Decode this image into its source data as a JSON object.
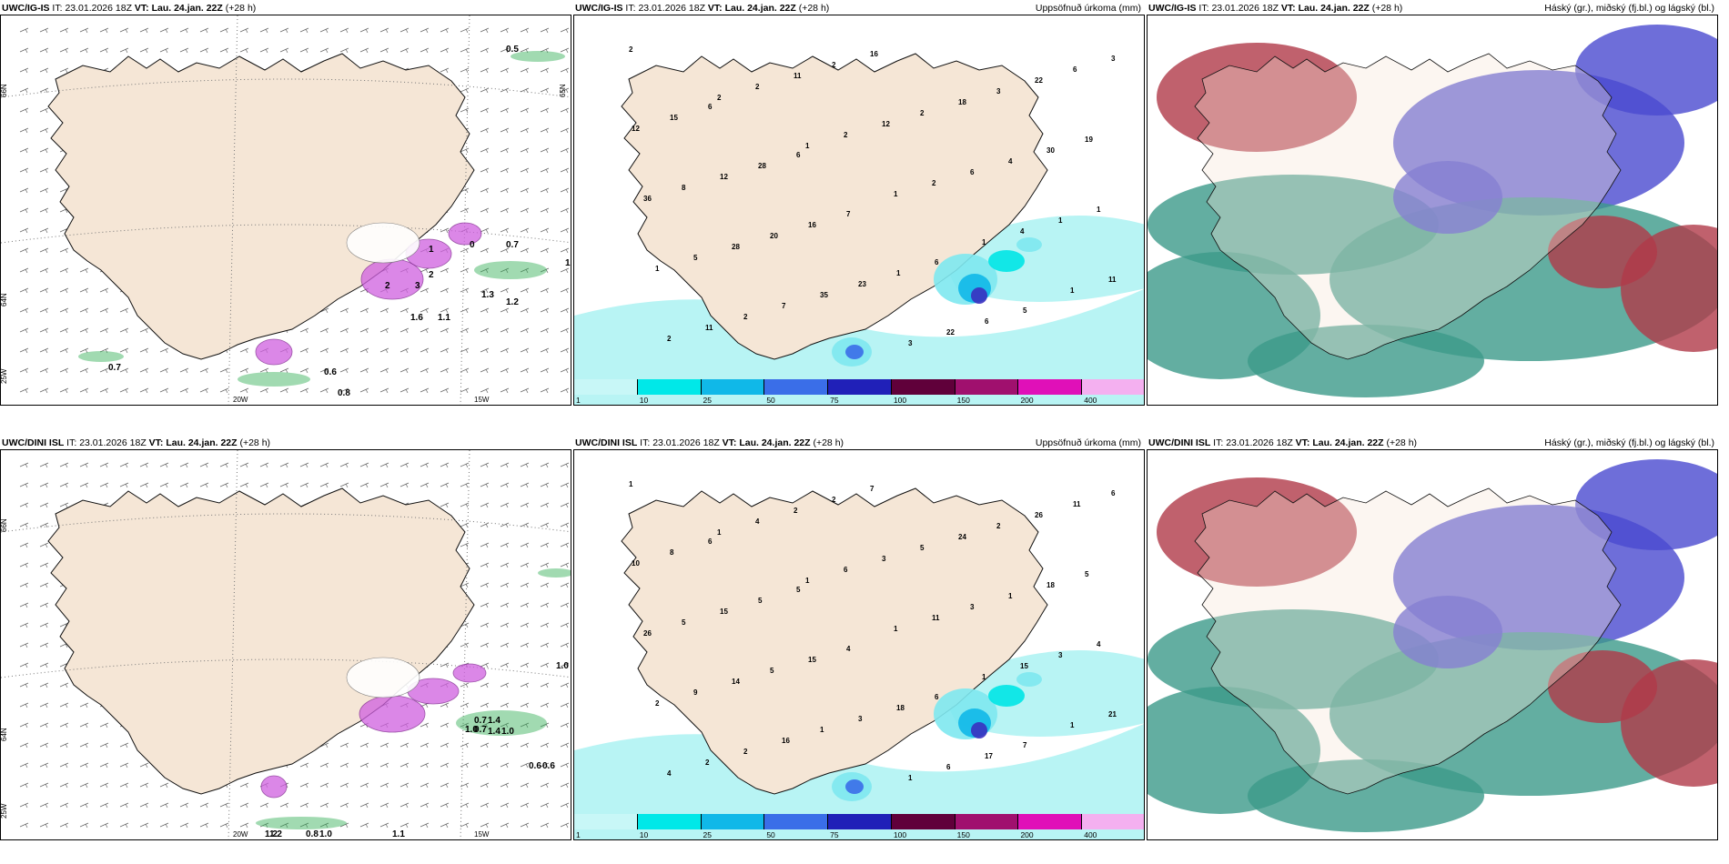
{
  "colors": {
    "land": "#f5e6d6",
    "ocean": "#ffffff",
    "coast": "#111111",
    "precip_light": "#b8f4f4",
    "precip_cyan": "#00e6e6",
    "cloud_high": "#3c9a8a",
    "cloud_mid": "#b03a48",
    "cloud_low": "#4a4ad0",
    "snow_purple": "#d060e0",
    "green_contour": "#2fae52"
  },
  "top_row": {
    "wind_panel": {
      "model": "UWC/IG-IS",
      "it_label": "IT:",
      "it_value": "23.01.2026 18Z",
      "vt_label": "VT:",
      "vt_value": "Lau. 24.jan. 22Z",
      "lead": "(+28 h)",
      "values": [
        "0.5",
        "0.7",
        "1.0",
        "1.3",
        "1.2",
        "1.1",
        "1.6",
        "0.6",
        "0.8",
        "0.7",
        "2",
        "2",
        "3",
        "1",
        "0"
      ],
      "lon_labels": [
        "20W",
        "15W"
      ],
      "lat_labels": [
        "66N",
        "64N",
        "25W",
        "65N"
      ]
    },
    "precip_panel": {
      "model": "UWC/IG-IS",
      "it_label": "IT:",
      "it_value": "23.01.2026 18Z",
      "vt_label": "VT:",
      "vt_value": "Lau. 24.jan. 22Z",
      "lead": "(+28 h)",
      "title": "Uppsöfnuð úrkoma (mm)",
      "values": [
        "2",
        "2",
        "1",
        "1",
        "1",
        "1",
        "2",
        "2",
        "2",
        "2",
        "4",
        "11",
        "11",
        "11",
        "12",
        "6",
        "1",
        "1",
        "2",
        "2",
        "2",
        "4",
        "1",
        "5",
        "7",
        "16",
        "18",
        "30",
        "36",
        "28",
        "35",
        "3",
        "3",
        "19",
        "8",
        "20",
        "23",
        "22",
        "22",
        "12",
        "12",
        "16",
        "1",
        "6",
        "6",
        "15",
        "28",
        "7",
        "6",
        "5",
        "3",
        "6",
        "6"
      ]
    },
    "cloud_panel": {
      "model": "UWC/IG-IS",
      "it_label": "IT:",
      "it_value": "23.01.2026 18Z",
      "vt_label": "VT:",
      "vt_value": "Lau. 24.jan. 22Z",
      "lead": "(+28 h)",
      "title": "Háský (gr.), miðský (fj.bl.) og lágský (bl.)"
    }
  },
  "bottom_row": {
    "wind_panel": {
      "model": "UWC/DINI ISL",
      "it_label": "IT:",
      "it_value": "23.01.2026 18Z",
      "vt_label": "VT:",
      "vt_value": "Lau. 24.jan. 22Z",
      "lead": "(+28 h)",
      "values": [
        "1.0",
        "1.2",
        "0.7",
        "1.1",
        "1.0",
        "1.4",
        "0.6",
        "0.6",
        "1.2",
        "0.8",
        "0.7",
        "1.0",
        "1.4",
        "1.0"
      ],
      "lon_labels": [
        "20W",
        "15W"
      ],
      "lat_labels": [
        "66N",
        "64N",
        "25W"
      ]
    },
    "precip_panel": {
      "model": "UWC/DINI ISL",
      "it_label": "IT:",
      "it_value": "23.01.2026 18Z",
      "vt_label": "VT:",
      "vt_value": "Lau. 24.jan. 22Z",
      "lead": "(+28 h)",
      "title": "Uppsöfnuð úrkoma (mm)",
      "values": [
        "1",
        "1",
        "1",
        "1",
        "1",
        "1",
        "4",
        "4",
        "6",
        "11",
        "15",
        "21",
        "2",
        "2",
        "3",
        "3",
        "3",
        "2",
        "2",
        "2",
        "5",
        "1",
        "4",
        "9",
        "16",
        "7",
        "24",
        "18",
        "26",
        "14",
        "1",
        "1",
        "2",
        "5",
        "5",
        "5",
        "3",
        "6",
        "26",
        "10",
        "15",
        "15",
        "18",
        "17",
        "11",
        "8",
        "5",
        "4",
        "6",
        "7",
        "6",
        "6",
        "5"
      ]
    },
    "cloud_panel": {
      "model": "UWC/DINI ISL",
      "it_label": "IT:",
      "it_value": "23.01.2026 18Z",
      "vt_label": "VT:",
      "vt_value": "Lau. 24.jan. 22Z",
      "lead": "(+28 h)",
      "title": "Háský (gr.), miðský (fj.bl.) og lágský (bl.)"
    }
  },
  "precip_legend": {
    "labels": [
      "1",
      "10",
      "25",
      "50",
      "75",
      "100",
      "150",
      "200",
      "400"
    ],
    "colors": [
      "#c8f7f7",
      "#00e8e8",
      "#10b8e8",
      "#3a6ee8",
      "#2020b8",
      "#60003a",
      "#a0106e",
      "#e010b8",
      "#f4b0f0"
    ]
  }
}
